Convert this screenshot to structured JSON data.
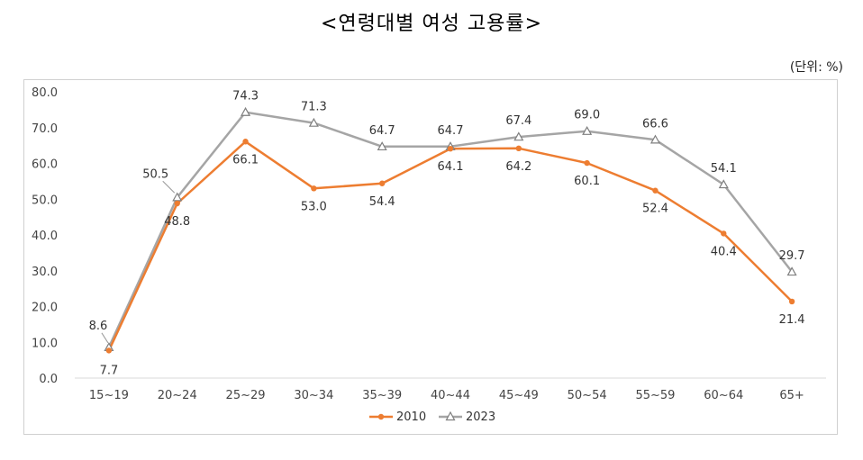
{
  "title": "<연령대별 여성 고용률>",
  "unit_note": "(단위: %)",
  "chart_data": {
    "type": "line",
    "categories": [
      "15~19",
      "20~24",
      "25~29",
      "30~34",
      "35~39",
      "40~44",
      "45~49",
      "50~54",
      "55~59",
      "60~64",
      "65+"
    ],
    "series": [
      {
        "name": "2010",
        "values": [
          7.7,
          48.8,
          66.1,
          53.0,
          54.4,
          64.1,
          64.2,
          60.1,
          52.4,
          40.4,
          21.4
        ],
        "color": "#ED7D31",
        "marker": "circle"
      },
      {
        "name": "2023",
        "values": [
          8.6,
          50.5,
          74.3,
          71.3,
          64.7,
          64.7,
          67.4,
          69.0,
          66.6,
          54.1,
          29.7
        ],
        "color": "#A5A5A5",
        "marker": "triangle"
      }
    ],
    "ylim": [
      0,
      80
    ],
    "yticks": [
      "0.0",
      "10.0",
      "20.0",
      "30.0",
      "40.0",
      "50.0",
      "60.0",
      "70.0",
      "80.0"
    ],
    "grid": false,
    "legend_position": "bottom"
  }
}
